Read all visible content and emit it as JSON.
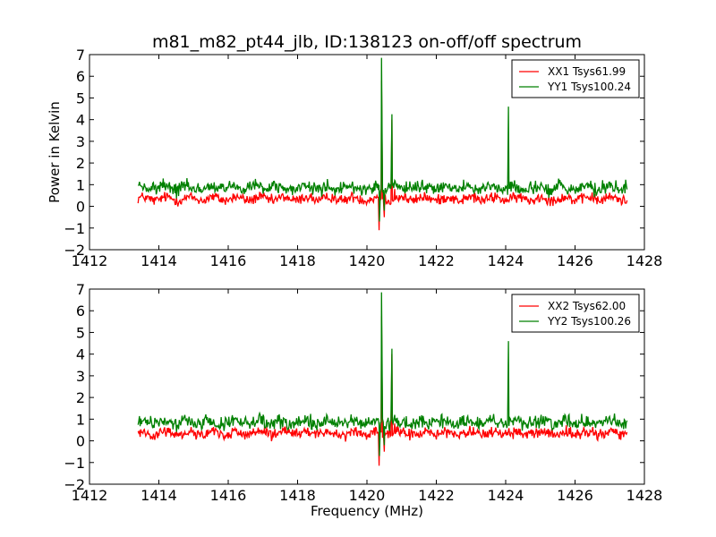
{
  "figure": {
    "title": "m81_m82_pt44_jlb, ID:138123 on-off/off spectrum"
  },
  "chart_data": [
    {
      "type": "line",
      "title": "m81_m82_pt44_jlb, ID:138123 on-off/off spectrum",
      "xlabel": "",
      "ylabel": "Power in Kelvin",
      "xlim": [
        1412,
        1428
      ],
      "ylim": [
        -2,
        7
      ],
      "xticks": [
        "1412",
        "1414",
        "1416",
        "1418",
        "1420",
        "1422",
        "1424",
        "1426",
        "1428"
      ],
      "yticks": [
        "−2",
        "−1",
        "0",
        "1",
        "2",
        "3",
        "4",
        "5",
        "6",
        "7"
      ],
      "grid": false,
      "legend_position": "top-right",
      "x_range_of_data": [
        1413.4,
        1427.5
      ],
      "series": [
        {
          "name": "XX1 Tsys61.99",
          "color": "#ff0000",
          "baseline": 0.35,
          "noise": 0.12,
          "features": [
            {
              "x": 1420.35,
              "y": -1.1
            },
            {
              "x": 1420.42,
              "y": 5.8
            },
            {
              "x": 1420.5,
              "y": -0.5
            },
            {
              "x": 1420.72,
              "y": 4.0
            },
            {
              "x": 1420.8,
              "y": 0.8
            }
          ]
        },
        {
          "name": "YY1 Tsys100.24",
          "color": "#008000",
          "baseline": 0.85,
          "noise": 0.15,
          "features": [
            {
              "x": 1420.36,
              "y": -0.7
            },
            {
              "x": 1420.42,
              "y": 6.85
            },
            {
              "x": 1420.5,
              "y": -0.2
            },
            {
              "x": 1420.72,
              "y": 4.25
            },
            {
              "x": 1420.8,
              "y": 1.2
            },
            {
              "x": 1424.08,
              "y": 4.6
            }
          ]
        }
      ]
    },
    {
      "type": "line",
      "title": "",
      "xlabel": "Frequency (MHz)",
      "ylabel": "",
      "xlim": [
        1412,
        1428
      ],
      "ylim": [
        -2,
        7
      ],
      "xticks": [
        "1412",
        "1414",
        "1416",
        "1418",
        "1420",
        "1422",
        "1424",
        "1426",
        "1428"
      ],
      "yticks": [
        "−2",
        "−1",
        "0",
        "1",
        "2",
        "3",
        "4",
        "5",
        "6",
        "7"
      ],
      "grid": false,
      "legend_position": "top-right",
      "x_range_of_data": [
        1413.4,
        1427.5
      ],
      "series": [
        {
          "name": "XX2 Tsys62.00",
          "color": "#ff0000",
          "baseline": 0.35,
          "noise": 0.12,
          "features": [
            {
              "x": 1420.35,
              "y": -1.15
            },
            {
              "x": 1420.42,
              "y": 5.75
            },
            {
              "x": 1420.5,
              "y": -0.5
            },
            {
              "x": 1420.72,
              "y": 4.0
            },
            {
              "x": 1420.8,
              "y": 0.8
            }
          ]
        },
        {
          "name": "YY2 Tsys100.26",
          "color": "#008000",
          "baseline": 0.85,
          "noise": 0.15,
          "features": [
            {
              "x": 1420.36,
              "y": -0.7
            },
            {
              "x": 1420.42,
              "y": 6.85
            },
            {
              "x": 1420.5,
              "y": -0.2
            },
            {
              "x": 1420.72,
              "y": 4.25
            },
            {
              "x": 1420.8,
              "y": 1.2
            },
            {
              "x": 1424.08,
              "y": 4.6
            }
          ]
        }
      ]
    }
  ]
}
